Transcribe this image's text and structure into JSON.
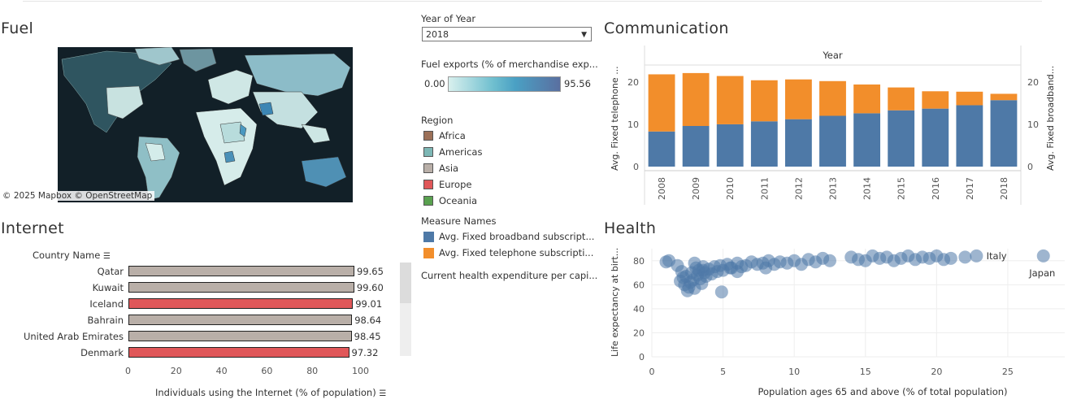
{
  "fuel": {
    "title": "Fuel",
    "credit": "© 2025 Mapbox  © OpenStreetMap"
  },
  "filters": {
    "year_label": "Year of Year",
    "year_value": "2018",
    "fuel_legend_title": "Fuel exports (% of merchandise exp...",
    "fuel_min": "0.00",
    "fuel_max": "95.56",
    "region_title": "Region",
    "regions": [
      {
        "label": "Africa",
        "color": "#9c7058"
      },
      {
        "label": "Americas",
        "color": "#7db7b5"
      },
      {
        "label": "Asia",
        "color": "#b9afa8"
      },
      {
        "label": "Europe",
        "color": "#e05759"
      },
      {
        "label": "Oceania",
        "color": "#59a14f"
      }
    ],
    "measure_title": "Measure Names",
    "measures": [
      {
        "label": "Avg. Fixed broadband subscript...",
        "color": "#4e79a7"
      },
      {
        "label": "Avg. Fixed telephone subscripti...",
        "color": "#f28e2b"
      }
    ],
    "health_exp_label": "Current health expenditure per capi..."
  },
  "internet": {
    "title": "Internet",
    "column_header": "Country Name",
    "xlabel": "Individuals using the Internet (% of population)",
    "xticks": [
      "0",
      "20",
      "40",
      "60",
      "80",
      "100"
    ],
    "rows": [
      {
        "country": "Qatar",
        "value": 99.65,
        "label": "99.65",
        "region": "Asia"
      },
      {
        "country": "Kuwait",
        "value": 99.6,
        "label": "99.60",
        "region": "Asia"
      },
      {
        "country": "Iceland",
        "value": 99.01,
        "label": "99.01",
        "region": "Europe"
      },
      {
        "country": "Bahrain",
        "value": 98.64,
        "label": "98.64",
        "region": "Asia"
      },
      {
        "country": "United Arab Emirates",
        "value": 98.45,
        "label": "98.45",
        "region": "Asia"
      },
      {
        "country": "Denmark",
        "value": 97.32,
        "label": "97.32",
        "region": "Europe"
      }
    ]
  },
  "communication": {
    "title": "Communication",
    "header": "Year",
    "ylabel_left": "Avg. Fixed telephone ...",
    "ylabel_right": "Avg. Fixed broadband...",
    "yticks": [
      "0",
      "10",
      "20"
    ]
  },
  "health": {
    "title": "Health",
    "xlabel": "Population ages 65 and above (% of total population)",
    "ylabel": "Life expectancy at birt...",
    "xticks": [
      "0",
      "5",
      "10",
      "15",
      "20",
      "25"
    ],
    "yticks": [
      "0",
      "20",
      "40",
      "60",
      "80"
    ],
    "annotations": [
      "Italy",
      "Japan"
    ]
  },
  "chart_data": [
    {
      "type": "bar",
      "title": "Internet",
      "categories": [
        "Qatar",
        "Kuwait",
        "Iceland",
        "Bahrain",
        "United Arab Emirates",
        "Denmark"
      ],
      "values": [
        99.65,
        99.6,
        99.01,
        98.64,
        98.45,
        97.32
      ],
      "xlabel": "Individuals using the Internet (% of population)",
      "xlim": [
        0,
        100
      ]
    },
    {
      "type": "bar",
      "title": "Communication",
      "categories": [
        "2008",
        "2009",
        "2010",
        "2011",
        "2012",
        "2013",
        "2014",
        "2015",
        "2016",
        "2017",
        "2018"
      ],
      "series": [
        {
          "name": "Avg. Fixed broadband subscript...",
          "values": [
            8.3,
            9.6,
            10.0,
            10.7,
            11.2,
            12.0,
            12.6,
            13.3,
            13.7,
            14.5,
            15.7
          ]
        },
        {
          "name": "Avg. Fixed telephone subscripti...",
          "values": [
            13.5,
            12.5,
            11.4,
            9.7,
            9.4,
            8.2,
            6.8,
            5.4,
            4.1,
            3.2,
            1.5
          ]
        }
      ],
      "ylim": [
        0,
        24
      ],
      "stacked": true
    },
    {
      "type": "scatter",
      "title": "Health",
      "xlabel": "Population ages 65 and above (% of total population)",
      "ylabel": "Life expectancy at birt...",
      "xlim": [
        0,
        29
      ],
      "ylim": [
        0,
        90
      ],
      "x": [
        1.0,
        1.2,
        1.8,
        2.0,
        2.2,
        2.3,
        2.5,
        2.6,
        2.7,
        2.8,
        2.9,
        3.0,
        3.1,
        3.2,
        3.3,
        3.4,
        3.5,
        3.6,
        3.7,
        3.8,
        4.0,
        4.2,
        4.4,
        4.6,
        4.8,
        5.0,
        5.3,
        5.6,
        6.0,
        6.3,
        6.6,
        7.0,
        7.4,
        7.8,
        8.2,
        8.6,
        9.0,
        9.5,
        10.0,
        10.5,
        11.0,
        11.5,
        12.0,
        14.0,
        14.5,
        15.0,
        15.5,
        16.0,
        16.5,
        17.0,
        17.5,
        18.0,
        18.5,
        19.0,
        19.5,
        20.0,
        20.5,
        21.0,
        22.0,
        22.8,
        27.5,
        4.9,
        2.4,
        3.0,
        6.0,
        8.0,
        12.5,
        3.6,
        2.1,
        5.5
      ],
      "y": [
        79,
        80,
        76,
        63,
        66,
        60,
        55,
        58,
        62,
        70,
        64,
        57,
        74,
        68,
        72,
        65,
        61,
        75,
        70,
        67,
        73,
        69,
        75,
        71,
        76,
        72,
        77,
        74,
        78,
        75,
        76,
        79,
        77,
        78,
        80,
        77,
        79,
        78,
        80,
        77,
        81,
        79,
        82,
        83,
        81,
        80,
        84,
        82,
        83,
        80,
        82,
        84,
        81,
        83,
        82,
        84,
        81,
        82,
        83,
        84,
        84,
        54,
        67,
        78,
        71,
        74,
        80,
        72,
        71,
        74
      ]
    }
  ]
}
